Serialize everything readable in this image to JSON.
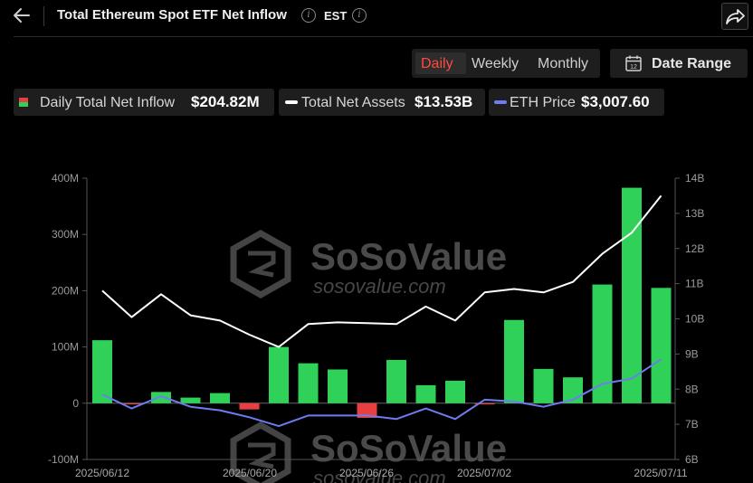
{
  "header": {
    "title": "Total Ethereum Spot ETF Net Inflow",
    "timezone": "EST"
  },
  "period_tabs": [
    {
      "label": "Daily",
      "active": true
    },
    {
      "label": "Weekly",
      "active": false
    },
    {
      "label": "Monthly",
      "active": false
    }
  ],
  "date_range": {
    "label": "Date Range",
    "icon_text": "12"
  },
  "legend": [
    {
      "name": "Daily Total Net Inflow",
      "value": "$204.82M",
      "marker": "bar",
      "colors": [
        "#e84040",
        "#30d158"
      ]
    },
    {
      "name": "Total Net Assets",
      "value": "$13.53B",
      "marker": "line",
      "color": "#ffffff"
    },
    {
      "name": "ETH Price",
      "value": "$3,007.60",
      "marker": "line",
      "color": "#6e7cf0"
    }
  ],
  "watermark": {
    "brand": "SoSoValue",
    "url": "sosovalue.com"
  },
  "colors": {
    "positive": "#30d158",
    "negative": "#e84040",
    "assets_line": "#ffffff",
    "price_line": "#6e7cf0",
    "accent": "#ff4a3d"
  },
  "chart_data": {
    "type": "bar",
    "x_tick_labels": [
      "2025/06/12",
      "2025/06/20",
      "2025/06/26",
      "2025/07/02",
      "2025/07/11"
    ],
    "left_axis_ticks": [
      "400M",
      "300M",
      "200M",
      "100M",
      "0",
      "-100M"
    ],
    "right_axis_ticks": [
      "14B",
      "13B",
      "12B",
      "11B",
      "10B",
      "9B",
      "8B",
      "7B",
      "6B"
    ],
    "left_ylim": [
      -100,
      400
    ],
    "right_ylim": [
      6,
      14
    ],
    "series": [
      {
        "name": "Daily Total Net Inflow",
        "unit": "M",
        "values": [
          112,
          -2,
          20,
          10,
          18,
          -11,
          100,
          71,
          60,
          -26,
          77,
          32,
          40,
          -2,
          148,
          61,
          46,
          211,
          383,
          205
        ]
      },
      {
        "name": "Total Net Assets",
        "unit": "B",
        "axis": "right",
        "values": [
          10.8,
          10.05,
          10.7,
          10.1,
          9.95,
          9.55,
          9.2,
          9.85,
          9.9,
          9.88,
          9.85,
          10.35,
          9.95,
          10.75,
          10.85,
          10.75,
          11.05,
          11.85,
          12.45,
          13.5
        ]
      },
      {
        "name": "ETH Price",
        "unit": "B-axis scale",
        "axis": "right",
        "values": [
          7.85,
          7.45,
          7.8,
          7.5,
          7.4,
          7.2,
          6.95,
          7.25,
          7.25,
          7.25,
          7.15,
          7.45,
          7.15,
          7.7,
          7.65,
          7.5,
          7.7,
          8.15,
          8.3,
          8.85
        ]
      }
    ]
  }
}
